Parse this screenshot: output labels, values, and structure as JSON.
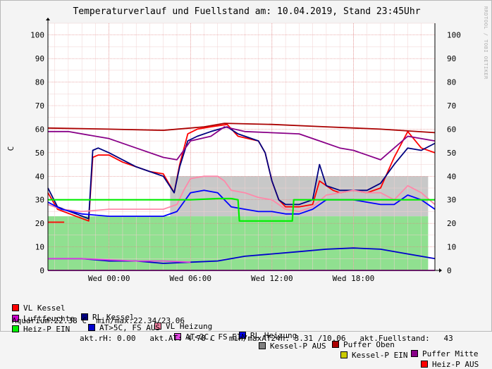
{
  "title": "Temperaturverlauf und Fuellstand am: 10.04.2019, Stand 23:45Uhr",
  "watermark": "RRDTOOL / TOBI OETIKER",
  "chart_data": {
    "type": "line",
    "ylabel": "C",
    "ylim": [
      0,
      105
    ],
    "y_ticks": [
      0,
      10,
      20,
      30,
      40,
      50,
      60,
      70,
      80,
      90,
      100
    ],
    "xlim": [
      -4.5,
      24
    ],
    "x_ticks": [
      {
        "x": 0,
        "label": "Wed 00:00"
      },
      {
        "x": 6,
        "label": "Wed 06:00"
      },
      {
        "x": 12,
        "label": "Wed 12:00"
      },
      {
        "x": 18,
        "label": "Wed 18:00"
      }
    ],
    "grid": true,
    "series": [
      {
        "name": "VL Kessel",
        "color": "#ff0000",
        "points": [
          [
            -4.5,
            33
          ],
          [
            -3.8,
            26
          ],
          [
            -1.5,
            21
          ],
          [
            -1.2,
            48
          ],
          [
            -0.8,
            49
          ],
          [
            0,
            49
          ],
          [
            1,
            46
          ],
          [
            2,
            44
          ],
          [
            3,
            42
          ],
          [
            4,
            41
          ],
          [
            4.8,
            33
          ],
          [
            5.2,
            45
          ],
          [
            5.8,
            58
          ],
          [
            6.5,
            60
          ],
          [
            7.5,
            61
          ],
          [
            8.7,
            62
          ],
          [
            9.5,
            57
          ],
          [
            11,
            55
          ],
          [
            11.5,
            50
          ],
          [
            12,
            38
          ],
          [
            12.5,
            30
          ],
          [
            13,
            27
          ],
          [
            14,
            27
          ],
          [
            15,
            28
          ],
          [
            15.5,
            38
          ],
          [
            16.5,
            34
          ],
          [
            17,
            33
          ],
          [
            18,
            34
          ],
          [
            19,
            33
          ],
          [
            20,
            35
          ],
          [
            21,
            48
          ],
          [
            22,
            59
          ],
          [
            23,
            52
          ],
          [
            24,
            50
          ]
        ]
      },
      {
        "name": "RL Kessel",
        "color": "#000080",
        "points": [
          [
            -4.5,
            35
          ],
          [
            -3.8,
            27
          ],
          [
            -1.5,
            22
          ],
          [
            -1.2,
            51
          ],
          [
            -0.8,
            52
          ],
          [
            0,
            50
          ],
          [
            1,
            47
          ],
          [
            2,
            44
          ],
          [
            3,
            42
          ],
          [
            4,
            40
          ],
          [
            4.8,
            33
          ],
          [
            5.2,
            44
          ],
          [
            5.8,
            55
          ],
          [
            6.5,
            57
          ],
          [
            7.5,
            59
          ],
          [
            8.7,
            61
          ],
          [
            9.5,
            58
          ],
          [
            11,
            55
          ],
          [
            11.5,
            50
          ],
          [
            12,
            38
          ],
          [
            12.5,
            30
          ],
          [
            13,
            28
          ],
          [
            14,
            28
          ],
          [
            15,
            30
          ],
          [
            15.5,
            45
          ],
          [
            16,
            36
          ],
          [
            17,
            34
          ],
          [
            18,
            34
          ],
          [
            19,
            34
          ],
          [
            20,
            37
          ],
          [
            21,
            45
          ],
          [
            22,
            52
          ],
          [
            23,
            51
          ],
          [
            24,
            54
          ]
        ]
      },
      {
        "name": "VL Heizung",
        "color": "#ff88aa",
        "points": [
          [
            -4.5,
            28
          ],
          [
            -3.5,
            26
          ],
          [
            -2,
            25
          ],
          [
            0,
            26
          ],
          [
            2,
            26
          ],
          [
            4,
            26
          ],
          [
            5,
            28
          ],
          [
            5.5,
            34
          ],
          [
            6,
            39
          ],
          [
            7,
            40
          ],
          [
            8,
            40
          ],
          [
            8.5,
            38
          ],
          [
            9,
            34
          ],
          [
            10,
            33
          ],
          [
            11,
            31
          ],
          [
            12,
            30
          ],
          [
            13,
            26
          ],
          [
            14,
            25
          ],
          [
            15,
            27
          ],
          [
            16,
            32
          ],
          [
            17,
            33
          ],
          [
            18,
            34
          ],
          [
            19,
            33
          ],
          [
            20,
            33
          ],
          [
            21,
            30
          ],
          [
            22,
            36
          ],
          [
            23,
            33
          ],
          [
            24,
            28
          ]
        ]
      },
      {
        "name": "RL Heizung",
        "color": "#0000ff",
        "points": [
          [
            -4.5,
            29
          ],
          [
            -3.5,
            26
          ],
          [
            -2,
            24
          ],
          [
            0,
            23
          ],
          [
            2,
            23
          ],
          [
            4,
            23
          ],
          [
            5,
            25
          ],
          [
            5.5,
            29
          ],
          [
            6,
            33
          ],
          [
            7,
            34
          ],
          [
            8,
            33
          ],
          [
            9,
            27
          ],
          [
            10,
            26
          ],
          [
            11,
            25
          ],
          [
            12,
            25
          ],
          [
            13,
            24
          ],
          [
            14,
            24
          ],
          [
            15,
            26
          ],
          [
            16,
            30
          ],
          [
            17,
            30
          ],
          [
            18,
            30
          ],
          [
            19,
            29
          ],
          [
            20,
            28
          ],
          [
            21,
            28
          ],
          [
            22,
            32
          ],
          [
            23,
            30
          ],
          [
            24,
            26
          ]
        ]
      },
      {
        "name": "Puffer Oben",
        "color": "#aa0000",
        "points": [
          [
            -4.5,
            60.5
          ],
          [
            0,
            60
          ],
          [
            4,
            59.5
          ],
          [
            7,
            61
          ],
          [
            8.5,
            62.5
          ],
          [
            12,
            62
          ],
          [
            16,
            61
          ],
          [
            20,
            60
          ],
          [
            24,
            58.5
          ]
        ]
      },
      {
        "name": "Puffer Mitte",
        "color": "#880088",
        "points": [
          [
            -4.5,
            59
          ],
          [
            -3,
            59
          ],
          [
            0,
            56
          ],
          [
            2,
            52
          ],
          [
            4,
            48
          ],
          [
            5,
            47
          ],
          [
            6,
            55
          ],
          [
            7.5,
            57
          ],
          [
            8.5,
            61
          ],
          [
            10,
            59
          ],
          [
            14,
            58
          ],
          [
            15.5,
            55
          ],
          [
            17,
            52
          ],
          [
            18,
            51
          ],
          [
            19,
            49
          ],
          [
            20,
            47
          ],
          [
            21,
            52
          ],
          [
            22,
            57
          ],
          [
            24,
            55
          ]
        ]
      },
      {
        "name": "Luftfeuchte",
        "color": "#cc00cc",
        "points": [
          [
            -4.5,
            0
          ],
          [
            24,
            0
          ]
        ]
      },
      {
        "name": "AT>5C, FS AUS",
        "color": "#0000cc",
        "points": [
          [
            -4.5,
            5
          ],
          [
            -2,
            5
          ],
          [
            0,
            4
          ],
          [
            2,
            4
          ],
          [
            4,
            3
          ],
          [
            6,
            3.5
          ],
          [
            8,
            4
          ],
          [
            10,
            6
          ],
          [
            12,
            7
          ],
          [
            14,
            8
          ],
          [
            16,
            9
          ],
          [
            18,
            9.5
          ],
          [
            20,
            9
          ],
          [
            22,
            7
          ],
          [
            24,
            5
          ]
        ]
      },
      {
        "name": "AT<2C, FS EIN",
        "color": "#dd44dd",
        "points": [
          [
            -4.5,
            5
          ],
          [
            -2,
            5
          ],
          [
            0,
            4.5
          ],
          [
            2,
            4
          ],
          [
            4,
            4
          ],
          [
            6,
            3.5
          ]
        ]
      },
      {
        "name": "Kessel-P AUS",
        "color": "#808080",
        "points": []
      },
      {
        "name": "Kessel-P EIN",
        "color": "#cccc00",
        "points": []
      },
      {
        "name": "Heiz-P AUS",
        "color": "#ff0000",
        "points": [
          [
            -4.5,
            20.5
          ],
          [
            -3.3,
            20.5
          ]
        ]
      },
      {
        "name": "Heiz-P EIN",
        "color": "#00ee00",
        "points": [
          [
            -4.5,
            30
          ],
          [
            -1.3,
            30
          ],
          [
            0,
            30
          ],
          [
            4,
            30
          ],
          [
            6,
            30
          ],
          [
            8,
            30.5
          ],
          [
            9,
            30.5
          ],
          [
            9.5,
            30
          ],
          [
            9.6,
            21
          ],
          [
            13.5,
            21
          ],
          [
            13.6,
            30
          ],
          [
            16,
            30
          ],
          [
            18,
            30
          ],
          [
            20,
            30
          ],
          [
            22,
            30
          ],
          [
            23,
            30
          ],
          [
            24,
            30
          ]
        ]
      }
    ],
    "fill_areas": [
      {
        "name": "Fuellstand",
        "color": "#90e090",
        "level": 23
      },
      {
        "name": "Kessel-P AUS band",
        "color": "#c8c8c8",
        "level": 40
      }
    ]
  },
  "stats": {
    "line1": "akt.rH: 0.00   akt.AT: 4.78 C   min/maxAT24h: 3.31 /10.06   akt.Fuellstand:   43",
    "line2": "Aquarium:22.38 C  min/max:22.34/23.06"
  }
}
